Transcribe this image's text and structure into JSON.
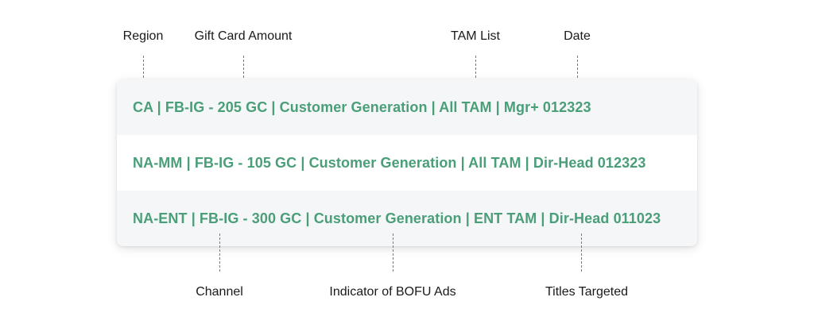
{
  "top_labels": {
    "region": "Region",
    "gift_card_amount": "Gift Card Amount",
    "tam_list": "TAM List",
    "date": "Date"
  },
  "bottom_labels": {
    "channel": "Channel",
    "bofu_indicator": "Indicator of BOFU Ads",
    "titles_targeted": "Titles Targeted"
  },
  "rows": [
    "CA | FB-IG - 205 GC | Customer Generation | All TAM | Mgr+ 012323",
    "NA-MM | FB-IG - 105 GC | Customer Generation | All TAM | Dir-Head 012323",
    "NA-ENT | FB-IG - 300 GC | Customer Generation | ENT TAM | Dir-Head 011023"
  ],
  "colors": {
    "row_text": "#4a9e78",
    "label_text": "#1a1a1a",
    "shaded_row": "#f5f6f8"
  }
}
